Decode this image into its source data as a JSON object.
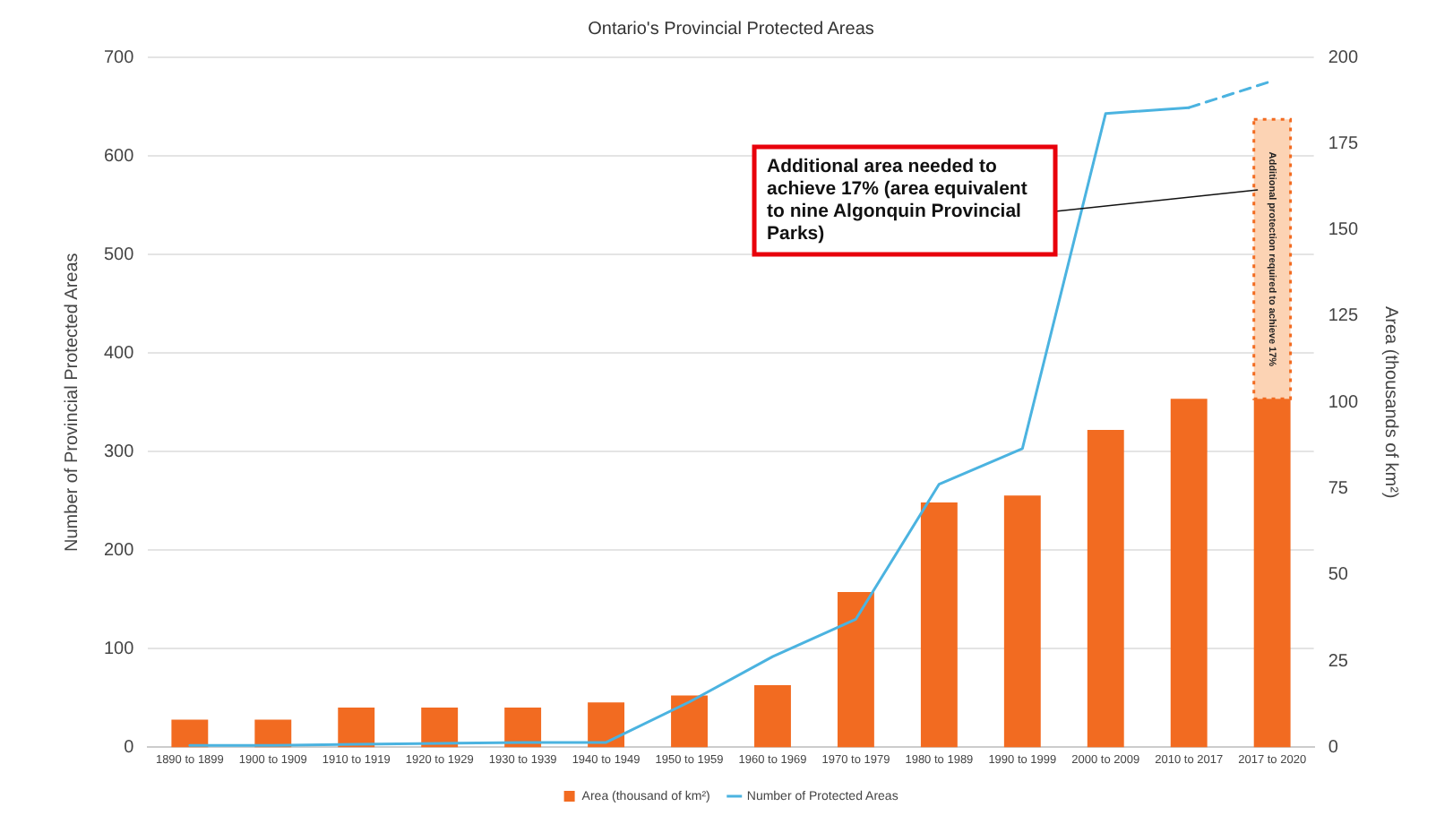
{
  "chart_data": {
    "type": "bar",
    "title": "Ontario's Provincial Protected Areas",
    "ylabel": "Number of Provincial Protected Areas",
    "y2label": "Area (thousands of km²)",
    "categories": [
      "1890 to 1899",
      "1900 to 1909",
      "1910 to 1919",
      "1920 to 1929",
      "1930 to 1939",
      "1940 to 1949",
      "1950 to 1959",
      "1960 to 1969",
      "1970 to 1979",
      "1980 to 1989",
      "1990 to 1999",
      "2000 to 2009",
      "2010 to 2017",
      "2017 to 2020"
    ],
    "series": [
      {
        "name": "Area (thousand of km²)",
        "axis": "y2",
        "color": "#f26b21",
        "values": [
          8,
          8,
          11.5,
          11.5,
          11.5,
          13,
          15,
          18,
          45,
          71,
          73,
          92,
          101,
          101
        ]
      },
      {
        "axis": "y2",
        "color": "#fcd3b4",
        "line_style": "dotted",
        "values": [
          null,
          null,
          null,
          null,
          null,
          null,
          null,
          null,
          null,
          null,
          null,
          null,
          null,
          81
        ]
      },
      {
        "name": "Number of Protected Areas",
        "type": "line",
        "color": "#4bb3e0",
        "values": [
          2,
          2,
          3,
          4,
          5,
          5,
          46,
          92,
          130,
          267,
          303,
          643,
          649,
          null
        ]
      },
      {
        "type": "line",
        "color": "#4bb3e0",
        "line_style": "dashed",
        "values": [
          null,
          null,
          null,
          null,
          null,
          null,
          null,
          null,
          null,
          null,
          null,
          null,
          649,
          676
        ]
      }
    ],
    "stacked": true,
    "marker": "none",
    "grid": "y",
    "legend": "bottom",
    "ylim": [
      0,
      700
    ],
    "yticks": [
      0,
      100,
      200,
      300,
      400,
      500,
      600,
      700
    ],
    "y2lim": [
      0,
      200
    ],
    "y2ticks": [
      0,
      25,
      50,
      75,
      100,
      125,
      150,
      175,
      200
    ],
    "annotations": [
      "Additional area needed to achieve 17% (area equivalent to nine Algonquin Provincial Parks)",
      "Additional protection required to achieve 17%"
    ]
  }
}
